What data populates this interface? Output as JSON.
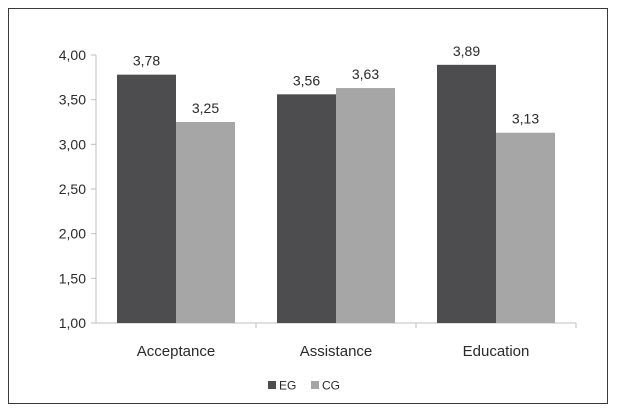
{
  "chart_data": {
    "type": "bar",
    "categories": [
      "Acceptance",
      "Assistance",
      "Education"
    ],
    "series": [
      {
        "name": "EG",
        "values": [
          3.78,
          3.56,
          3.89
        ],
        "labels": [
          "3,78",
          "3,56",
          "3,89"
        ],
        "color": "#4d4d4f"
      },
      {
        "name": "CG",
        "values": [
          3.25,
          3.63,
          3.13
        ],
        "labels": [
          "3,25",
          "3,63",
          "3,13"
        ],
        "color": "#a6a6a6"
      }
    ],
    "ylim": [
      1.0,
      4.0
    ],
    "yticks": [
      1.0,
      1.5,
      2.0,
      2.5,
      3.0,
      3.5,
      4.0
    ],
    "ytick_labels": [
      "1,00",
      "1,50",
      "2,00",
      "2,50",
      "3,00",
      "3,50",
      "4,00"
    ],
    "grid": false,
    "legend_position": "bottom"
  }
}
